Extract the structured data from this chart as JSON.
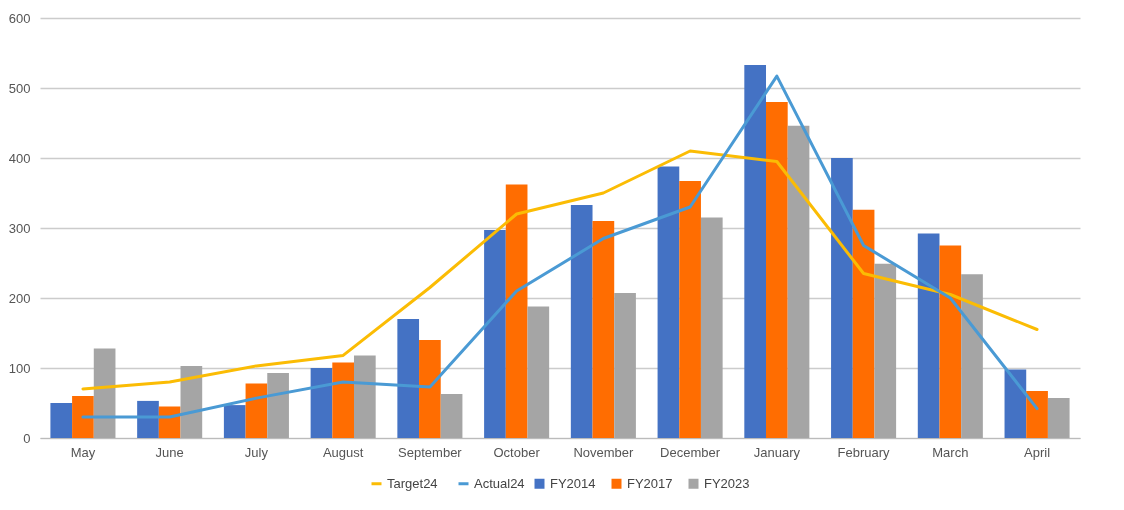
{
  "chart_data": {
    "type": "bar",
    "categories": [
      "May",
      "June",
      "July",
      "August",
      "September",
      "October",
      "November",
      "December",
      "January",
      "February",
      "March",
      "April"
    ],
    "series": [
      {
        "name": "FY2014",
        "color": "#4472c4",
        "values": [
          50,
          53,
          47,
          100,
          170,
          297,
          333,
          388,
          533,
          400,
          292,
          98
        ]
      },
      {
        "name": "FY2017",
        "color": "#ff6d01",
        "values": [
          60,
          45,
          78,
          108,
          140,
          362,
          310,
          367,
          480,
          326,
          275,
          67
        ]
      },
      {
        "name": "FY2023",
        "color": "#a5a5a5",
        "values": [
          128,
          103,
          93,
          118,
          63,
          188,
          207,
          315,
          446,
          249,
          234,
          57
        ]
      },
      {
        "name": "Target24",
        "type": "line",
        "color": "#fbbc04",
        "values": [
          70,
          80,
          103,
          118,
          215,
          320,
          350,
          410,
          395,
          235,
          205,
          155
        ]
      },
      {
        "name": "Actual24",
        "type": "line",
        "color": "#4a9ad4",
        "values": [
          30,
          30,
          57,
          80,
          73,
          210,
          285,
          330,
          517,
          275,
          200,
          42
        ]
      }
    ],
    "ylim": [
      0,
      600
    ],
    "yticks": [
      0,
      100,
      200,
      300,
      400,
      500,
      600
    ],
    "grid": "y",
    "legend": "bottom"
  }
}
